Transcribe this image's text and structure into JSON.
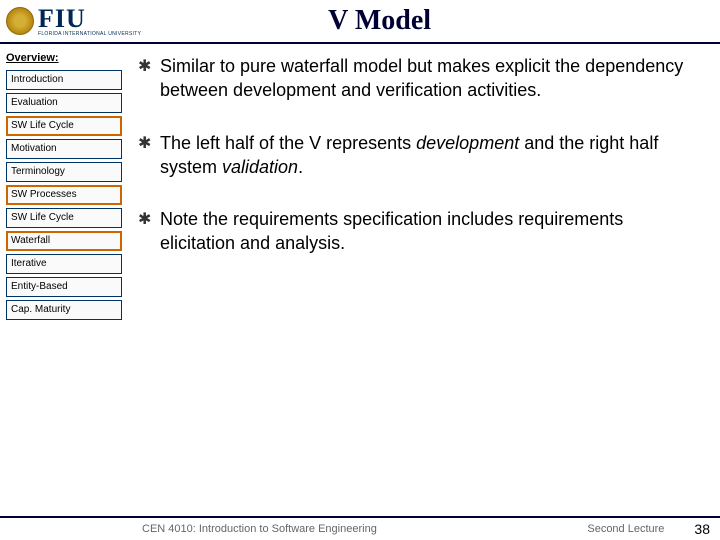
{
  "header": {
    "title": "V Model",
    "logo_text": "FIU",
    "logo_sub": "FLORIDA INTERNATIONAL UNIVERSITY"
  },
  "sidebar": {
    "heading": "Overview:",
    "items": [
      {
        "label": "Introduction",
        "style": "boxed-blue"
      },
      {
        "label": "Evaluation",
        "style": "boxed-blue"
      },
      {
        "label": "SW Life Cycle",
        "style": "boxed-orange"
      },
      {
        "label": "Motivation",
        "style": "boxed-blue"
      },
      {
        "label": "Terminology",
        "style": "boxed-blue"
      },
      {
        "label": "SW Processes",
        "style": "boxed-orange"
      },
      {
        "label": "SW Life Cycle",
        "style": "boxed-blue"
      },
      {
        "label": "Waterfall",
        "style": "boxed-orange"
      },
      {
        "label": "Iterative",
        "style": "boxed-blue"
      },
      {
        "label": "Entity-Based",
        "style": "boxed-blue"
      },
      {
        "label": "Cap. Maturity",
        "style": "boxed-blue"
      }
    ]
  },
  "content": {
    "bullets": [
      {
        "html": "Similar to pure waterfall model but makes explicit the dependency between development and verification activities."
      },
      {
        "html": "The left half of the V represents <em>development</em> and the right half system <em>validation</em>."
      },
      {
        "html": "Note the requirements specification includes requirements elicitation and analysis."
      }
    ],
    "bullet_glyph": "✱"
  },
  "footer": {
    "left": "CEN 4010: Introduction to Software Engineering",
    "mid": "Second Lecture",
    "page": "38"
  },
  "colors": {
    "border": "#000033",
    "orange": "#cc6600",
    "blue": "#003366",
    "footer_text": "#666666"
  }
}
